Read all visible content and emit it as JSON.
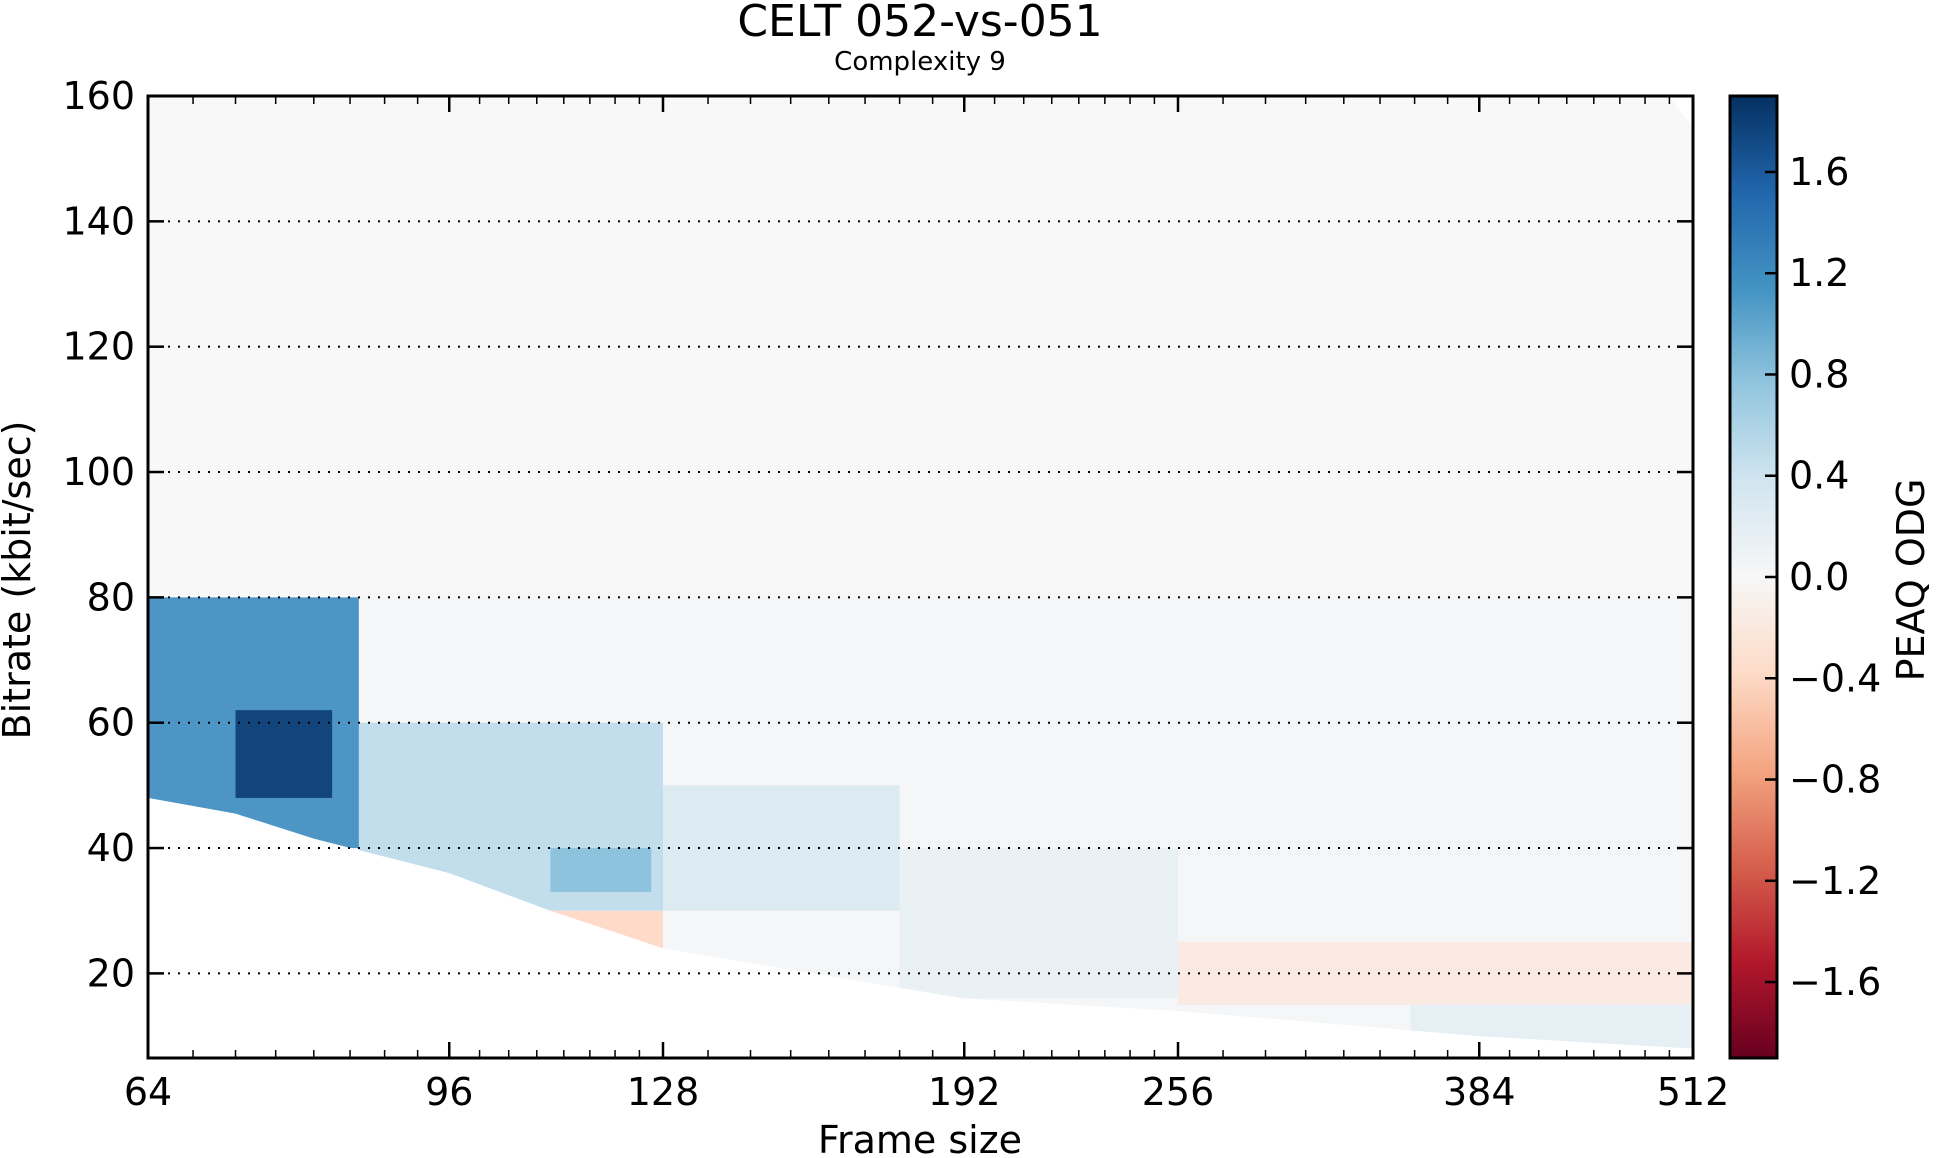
{
  "chart_data": {
    "type": "heatmap",
    "title": "CELT 052-vs-051",
    "subtitle": "Complexity 9",
    "xlabel": "Frame size",
    "ylabel": "Bitrate (kbit/sec)",
    "x_scale": "log2",
    "xlim": [
      64,
      512
    ],
    "ylim": [
      6.5,
      160
    ],
    "x_ticks": [
      64,
      96,
      128,
      192,
      256,
      384,
      512
    ],
    "y_ticks": [
      20,
      40,
      60,
      80,
      100,
      120,
      140,
      160
    ],
    "grid": "horizontal-dotted",
    "colorbar": {
      "label": "PEAQ ODG",
      "range": [
        -1.9,
        1.9
      ],
      "ticks": [
        -1.6,
        -1.2,
        -0.8,
        -0.4,
        0.0,
        0.4,
        0.8,
        1.2,
        1.6
      ],
      "tick_labels": [
        "−1.6",
        "−1.2",
        "−0.8",
        "−0.4",
        "0.0",
        "0.4",
        "0.8",
        "1.2",
        "1.6"
      ],
      "colormap": "RdBu",
      "stops": [
        "#67001f",
        "#b2182b",
        "#d6604d",
        "#f4a582",
        "#fddbc7",
        "#f7f7f7",
        "#d1e5f0",
        "#92c5de",
        "#4393c3",
        "#2166ac",
        "#053061"
      ]
    },
    "regions": [
      {
        "x": [
          64,
          85
        ],
        "y": [
          40,
          80
        ],
        "approx_value": 1.2
      },
      {
        "x": [
          72,
          82
        ],
        "y": [
          48,
          62
        ],
        "approx_value": 1.8
      },
      {
        "x": [
          85,
          128
        ],
        "y": [
          30,
          60
        ],
        "approx_value": 0.5
      },
      {
        "x": [
          110,
          126
        ],
        "y": [
          33,
          40
        ],
        "approx_value": 0.8
      },
      {
        "x": [
          104,
          128
        ],
        "y": [
          24,
          30
        ],
        "approx_value": -0.4
      },
      {
        "x": [
          128,
          176
        ],
        "y": [
          30,
          50
        ],
        "approx_value": 0.3
      },
      {
        "x": [
          176,
          256
        ],
        "y": [
          16,
          40
        ],
        "approx_value": 0.15
      },
      {
        "x": [
          256,
          512
        ],
        "y": [
          15,
          25
        ],
        "approx_value": -0.2
      },
      {
        "x": [
          350,
          512
        ],
        "y": [
          8,
          15
        ],
        "approx_value": 0.2
      },
      {
        "x": [
          64,
          512
        ],
        "y": [
          80,
          160
        ],
        "approx_value": 0.0
      }
    ]
  }
}
